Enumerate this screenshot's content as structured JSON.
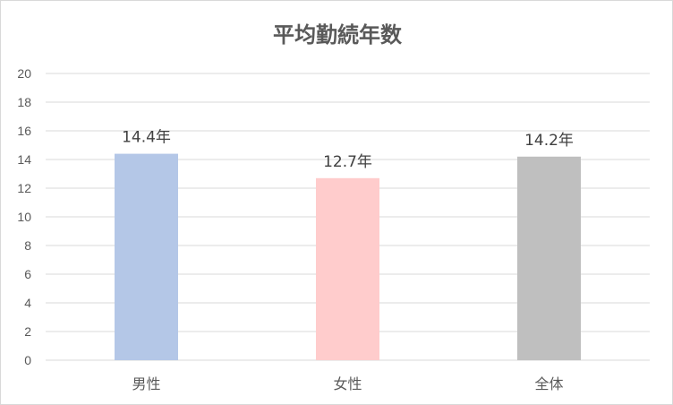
{
  "chart_data": {
    "type": "bar",
    "title": "平均勤続年数",
    "categories": [
      "男性",
      "女性",
      "全体"
    ],
    "values": [
      14.4,
      12.7,
      14.2
    ],
    "data_labels": [
      "14.4年",
      "12.7年",
      "14.2年"
    ],
    "bar_colors": [
      "#b4c7e7",
      "#ffcccc",
      "#bfbfbf"
    ],
    "ylim": [
      0,
      20
    ],
    "yticks": [
      0,
      2,
      4,
      6,
      8,
      10,
      12,
      14,
      16,
      18,
      20
    ],
    "grid": true,
    "legend": "none",
    "xlabel": "",
    "ylabel": ""
  }
}
